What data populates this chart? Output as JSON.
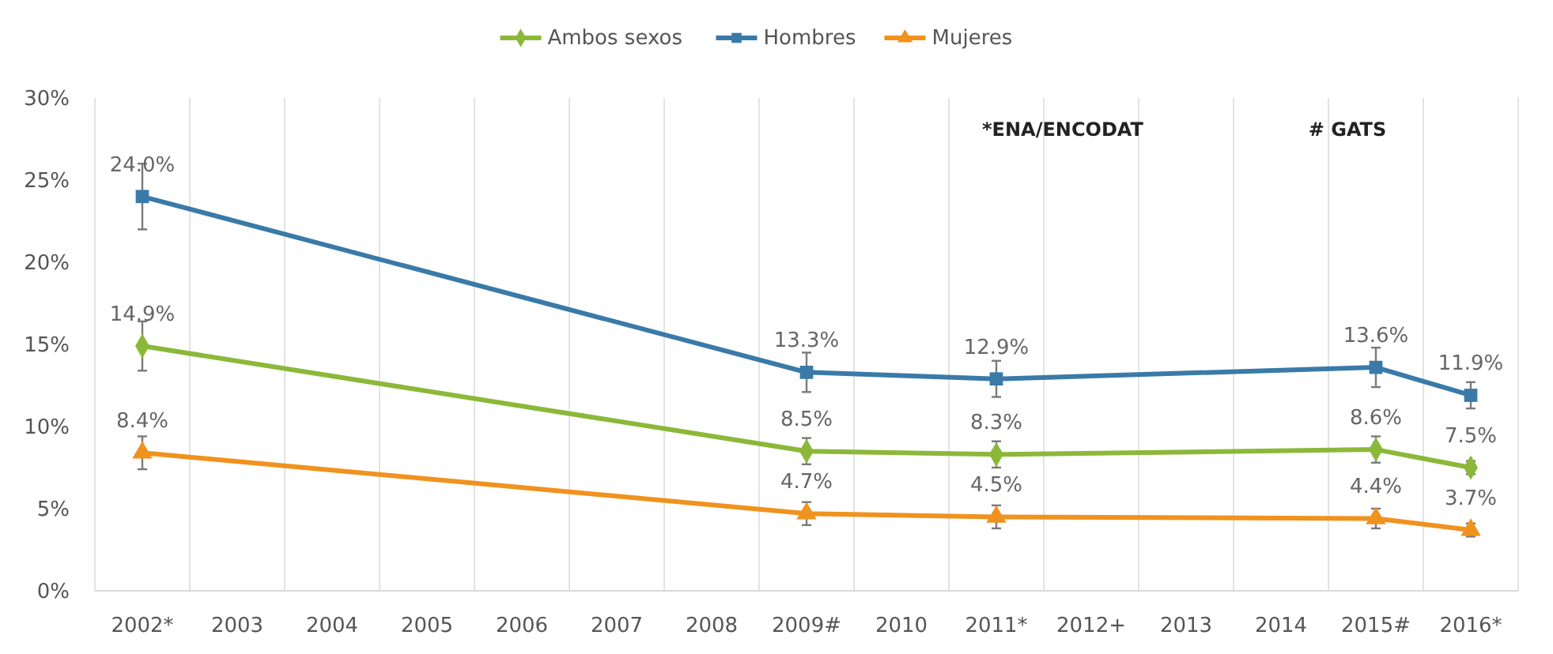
{
  "chart_data": {
    "type": "line",
    "categories": [
      "2002*",
      "2003",
      "2004",
      "2005",
      "2006",
      "2007",
      "2008",
      "2009#",
      "2010",
      "2011*",
      "2012+",
      "2013",
      "2014",
      "2015#",
      "2016*"
    ],
    "ylim": [
      0,
      30
    ],
    "yticks": [
      {
        "value": 0,
        "label": "0%"
      },
      {
        "value": 5,
        "label": "5%"
      },
      {
        "value": 10,
        "label": "10%"
      },
      {
        "value": 15,
        "label": "15%"
      },
      {
        "value": 20,
        "label": "20%"
      },
      {
        "value": 25,
        "label": "25%"
      },
      {
        "value": 30,
        "label": "30%"
      }
    ],
    "grid": "x",
    "legend": "top",
    "line_style": "solid",
    "annotations": [
      "*ENA/ENCODAT",
      "# GATS"
    ],
    "series": [
      {
        "name": "Ambos sexos",
        "color": "#8cb83a",
        "marker": "diamond",
        "values": [
          14.9,
          null,
          null,
          null,
          null,
          null,
          null,
          8.5,
          null,
          8.3,
          null,
          null,
          null,
          8.6,
          7.5
        ],
        "errors": [
          1.5,
          null,
          null,
          null,
          null,
          null,
          null,
          0.8,
          null,
          0.8,
          null,
          null,
          null,
          0.8,
          0.4
        ],
        "value_labels": [
          "14.9%",
          null,
          null,
          null,
          null,
          null,
          null,
          "8.5%",
          null,
          "8.3%",
          null,
          null,
          null,
          "8.6%",
          "7.5%"
        ]
      },
      {
        "name": "Hombres",
        "color": "#3a7aa8",
        "marker": "square",
        "values": [
          24.0,
          null,
          null,
          null,
          null,
          null,
          null,
          13.3,
          null,
          12.9,
          null,
          null,
          null,
          13.6,
          11.9
        ],
        "errors": [
          2.0,
          null,
          null,
          null,
          null,
          null,
          null,
          1.2,
          null,
          1.1,
          null,
          null,
          null,
          1.2,
          0.8
        ],
        "value_labels": [
          "24.0%",
          null,
          null,
          null,
          null,
          null,
          null,
          "13.3%",
          null,
          "12.9%",
          null,
          null,
          null,
          "13.6%",
          "11.9%"
        ]
      },
      {
        "name": "Mujeres",
        "color": "#f0921e",
        "marker": "triangle",
        "values": [
          8.4,
          null,
          null,
          null,
          null,
          null,
          null,
          4.7,
          null,
          4.5,
          null,
          null,
          null,
          4.4,
          3.7
        ],
        "errors": [
          1.0,
          null,
          null,
          null,
          null,
          null,
          null,
          0.7,
          null,
          0.7,
          null,
          null,
          null,
          0.6,
          0.4
        ],
        "value_labels": [
          "8.4%",
          null,
          null,
          null,
          null,
          null,
          null,
          "4.7%",
          null,
          "4.5%",
          null,
          null,
          null,
          "4.4%",
          "3.7%"
        ]
      }
    ]
  }
}
